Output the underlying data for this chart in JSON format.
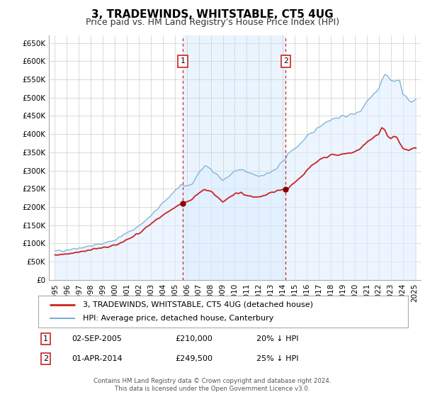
{
  "title": "3, TRADEWINDS, WHITSTABLE, CT5 4UG",
  "subtitle": "Price paid vs. HM Land Registry's House Price Index (HPI)",
  "xlim": [
    1994.5,
    2025.5
  ],
  "ylim": [
    0,
    670000
  ],
  "yticks": [
    0,
    50000,
    100000,
    150000,
    200000,
    250000,
    300000,
    350000,
    400000,
    450000,
    500000,
    550000,
    600000,
    650000
  ],
  "ytick_labels": [
    "£0",
    "£50K",
    "£100K",
    "£150K",
    "£200K",
    "£250K",
    "£300K",
    "£350K",
    "£400K",
    "£450K",
    "£500K",
    "£550K",
    "£600K",
    "£650K"
  ],
  "xticks": [
    1995,
    1996,
    1997,
    1998,
    1999,
    2000,
    2001,
    2002,
    2003,
    2004,
    2005,
    2006,
    2007,
    2008,
    2009,
    2010,
    2011,
    2012,
    2013,
    2014,
    2015,
    2016,
    2017,
    2018,
    2019,
    2020,
    2021,
    2022,
    2023,
    2024,
    2025
  ],
  "background_color": "#ffffff",
  "plot_bg_color": "#ffffff",
  "grid_color": "#cccccc",
  "hpi_line_color": "#7ab0d4",
  "price_line_color": "#cc2222",
  "hpi_fill_color": "#ddeeff",
  "shade_color": "#ddeeff",
  "marker1_x": 2005.67,
  "marker1_y": 210000,
  "marker1_label": "1",
  "marker1_date": "02-SEP-2005",
  "marker1_price": "£210,000",
  "marker1_note": "20% ↓ HPI",
  "marker2_x": 2014.25,
  "marker2_y": 249500,
  "marker2_label": "2",
  "marker2_date": "01-APR-2014",
  "marker2_price": "£249,500",
  "marker2_note": "25% ↓ HPI",
  "legend_line1": "3, TRADEWINDS, WHITSTABLE, CT5 4UG (detached house)",
  "legend_line2": "HPI: Average price, detached house, Canterbury",
  "footer1": "Contains HM Land Registry data © Crown copyright and database right 2024.",
  "footer2": "This data is licensed under the Open Government Licence v3.0.",
  "title_fontsize": 11,
  "subtitle_fontsize": 9,
  "hpi_anchors_x": [
    1995.0,
    1996.0,
    1997.0,
    1998.0,
    1999.0,
    2000.0,
    2001.0,
    2002.0,
    2003.0,
    2004.0,
    2005.0,
    2005.5,
    2006.0,
    2006.5,
    2007.0,
    2007.5,
    2008.0,
    2008.5,
    2009.0,
    2009.5,
    2010.0,
    2010.5,
    2011.0,
    2011.5,
    2012.0,
    2012.5,
    2013.0,
    2013.5,
    2014.0,
    2014.5,
    2015.0,
    2015.5,
    2016.0,
    2016.5,
    2017.0,
    2017.5,
    2018.0,
    2018.5,
    2019.0,
    2019.5,
    2020.0,
    2020.5,
    2021.0,
    2021.5,
    2022.0,
    2022.25,
    2022.5,
    2022.75,
    2023.0,
    2023.25,
    2023.5,
    2023.75,
    2024.0,
    2024.25,
    2024.5,
    2024.75,
    2025.0
  ],
  "hpi_anchors_y": [
    78000,
    83000,
    88000,
    93000,
    100000,
    110000,
    128000,
    148000,
    175000,
    210000,
    245000,
    256000,
    258000,
    265000,
    295000,
    312000,
    305000,
    290000,
    272000,
    285000,
    298000,
    302000,
    295000,
    290000,
    285000,
    290000,
    295000,
    305000,
    325000,
    348000,
    360000,
    375000,
    392000,
    405000,
    420000,
    432000,
    440000,
    445000,
    448000,
    452000,
    456000,
    465000,
    490000,
    510000,
    525000,
    548000,
    565000,
    558000,
    548000,
    542000,
    552000,
    545000,
    510000,
    502000,
    493000,
    487000,
    495000
  ],
  "price_anchors_x": [
    1995.0,
    1996.0,
    1997.0,
    1998.0,
    1999.0,
    2000.0,
    2001.0,
    2002.0,
    2003.0,
    2004.0,
    2005.0,
    2005.67,
    2006.0,
    2006.5,
    2007.0,
    2007.5,
    2008.0,
    2008.5,
    2009.0,
    2009.5,
    2010.0,
    2010.5,
    2011.0,
    2011.5,
    2012.0,
    2012.5,
    2013.0,
    2013.5,
    2014.0,
    2014.25,
    2014.5,
    2015.0,
    2015.5,
    2016.0,
    2016.5,
    2017.0,
    2017.5,
    2018.0,
    2018.5,
    2019.0,
    2019.5,
    2020.0,
    2020.5,
    2021.0,
    2021.5,
    2022.0,
    2022.25,
    2022.5,
    2022.75,
    2023.0,
    2023.25,
    2023.5,
    2023.75,
    2024.0,
    2024.25,
    2024.5,
    2024.75,
    2025.0
  ],
  "price_anchors_y": [
    68000,
    72000,
    77000,
    82000,
    88000,
    95000,
    110000,
    128000,
    152000,
    178000,
    200000,
    210000,
    215000,
    222000,
    240000,
    250000,
    242000,
    230000,
    215000,
    225000,
    235000,
    240000,
    232000,
    228000,
    228000,
    233000,
    238000,
    244000,
    248000,
    249500,
    252000,
    268000,
    282000,
    300000,
    315000,
    328000,
    337000,
    343000,
    343000,
    345000,
    347000,
    350000,
    362000,
    378000,
    390000,
    400000,
    418000,
    412000,
    395000,
    388000,
    395000,
    390000,
    375000,
    362000,
    358000,
    355000,
    358000,
    362000
  ]
}
